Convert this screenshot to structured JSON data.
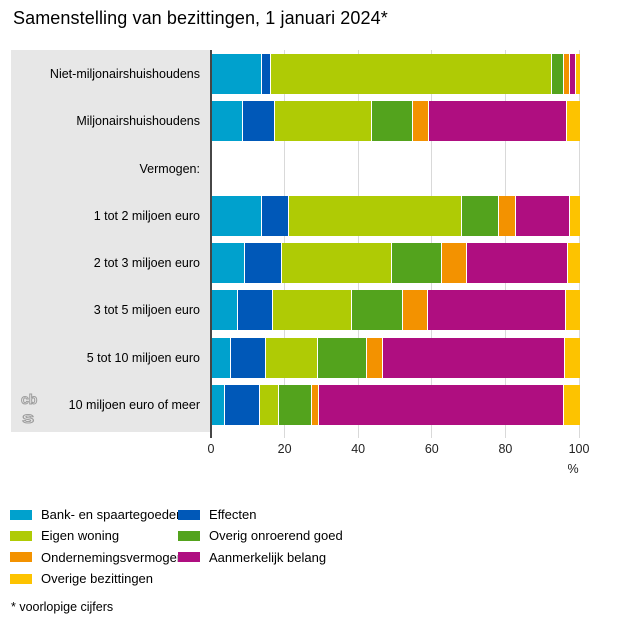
{
  "title": "Samenstelling van bezittingen, 1 januari 2024*",
  "footnote": "* voorlopige cijfers",
  "logo": {
    "line1": "cb",
    "line2": "s"
  },
  "colors": {
    "panel": "#e7e7e7",
    "axis_line": "#464646",
    "gridline": "#d9d9d9",
    "tick_text": "#222222"
  },
  "chart_data": {
    "type": "bar",
    "orientation": "horizontal",
    "stacked": true,
    "title": "Samenstelling van bezittingen, 1 januari 2024*",
    "xlabel": "%",
    "xlim": [
      0,
      100
    ],
    "xticks": [
      0,
      20,
      40,
      60,
      80,
      100
    ],
    "grid": true,
    "legend_position": "bottom",
    "categories": [
      "Niet-miljonairshuishoudens",
      "Miljonairshuishoudens",
      "Vermogen:",
      "1 tot 2 miljoen euro",
      "2 tot 3 miljoen euro",
      "3 tot 5 miljoen euro",
      "5 tot 10 miljoen euro",
      "10 miljoen euro of meer"
    ],
    "series": [
      {
        "name": "Bank- en spaartegoeden",
        "color": "#00a1cd",
        "values": [
          13.6,
          8.3,
          null,
          13.6,
          9.1,
          7.2,
          5.2,
          3.6
        ]
      },
      {
        "name": "Effecten",
        "color": "#0058b8",
        "values": [
          2.3,
          8.8,
          null,
          7.2,
          9.8,
          9.5,
          9.5,
          9.5
        ]
      },
      {
        "name": "Eigen woning",
        "color": "#afcb05",
        "values": [
          76.5,
          26.3,
          null,
          47.1,
          30.0,
          21.3,
          14.0,
          5.0
        ]
      },
      {
        "name": "Overig onroerend goed",
        "color": "#53a31d",
        "values": [
          3.2,
          11.3,
          null,
          10.0,
          13.5,
          13.8,
          13.4,
          9.1
        ]
      },
      {
        "name": "Ondernemingsvermogen",
        "color": "#f39200",
        "values": [
          1.7,
          4.2,
          null,
          4.7,
          6.8,
          6.8,
          4.3,
          1.8
        ]
      },
      {
        "name": "Aanmerkelijk belang",
        "color": "#af0e80",
        "values": [
          1.5,
          37.5,
          null,
          14.7,
          27.6,
          37.6,
          49.6,
          66.6
        ]
      },
      {
        "name": "Overige bezittingen",
        "color": "#fdc300",
        "values": [
          1.2,
          3.6,
          null,
          2.7,
          3.2,
          3.8,
          4.0,
          4.4
        ]
      }
    ]
  },
  "legend": {
    "columns": [
      {
        "items": [
          {
            "label": "Bank- en spaartegoeden",
            "color": "#00a1cd"
          },
          {
            "label": "Eigen woning",
            "color": "#afcb05"
          },
          {
            "label": "Ondernemingsvermogen",
            "color": "#f39200"
          },
          {
            "label": "Overige bezittingen",
            "color": "#fdc300"
          }
        ]
      },
      {
        "items": [
          {
            "label": "Effecten",
            "color": "#0058b8"
          },
          {
            "label": "Overig onroerend goed",
            "color": "#53a31d"
          },
          {
            "label": "Aanmerkelijk belang",
            "color": "#af0e80"
          }
        ]
      }
    ]
  }
}
